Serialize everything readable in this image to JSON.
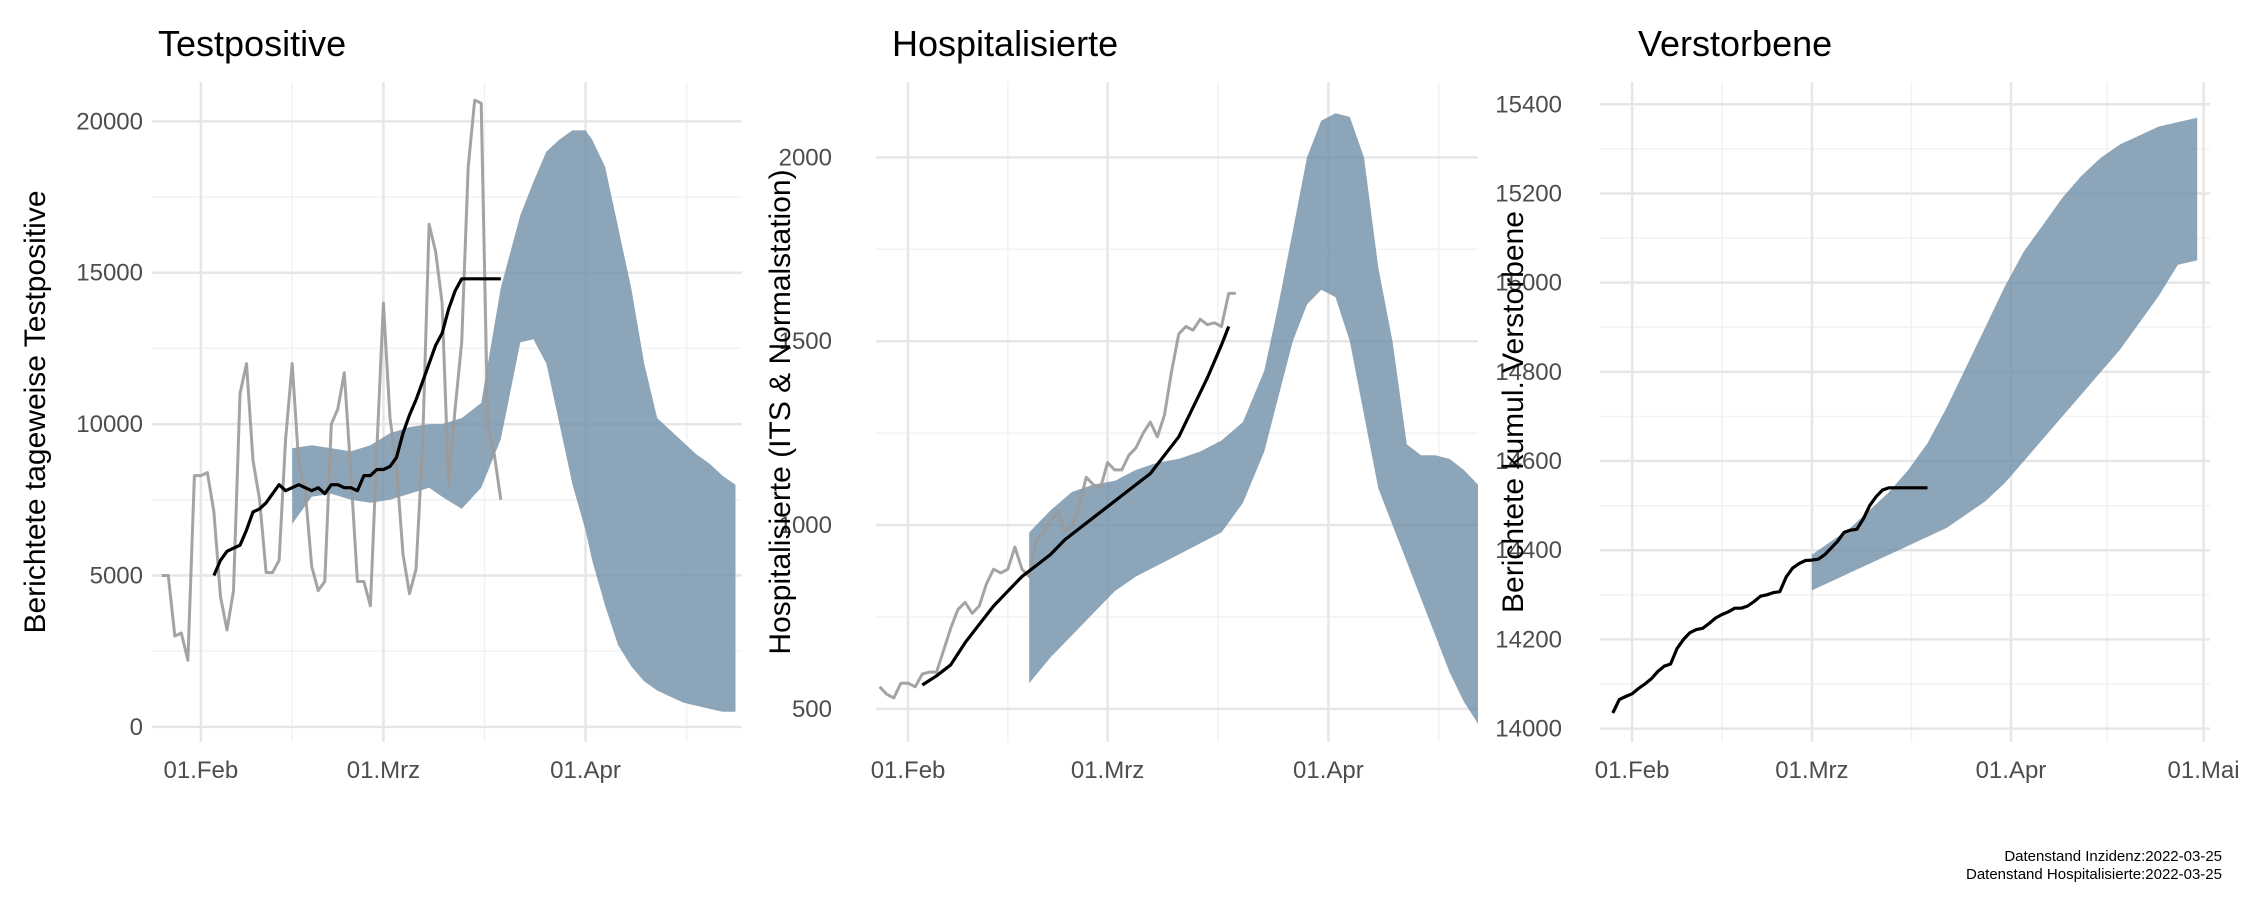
{
  "captions": {
    "line1": "Datenstand Inzidenz:2022-03-25",
    "line2": "Datenstand Hospitalisierte:2022-03-25"
  },
  "colors": {
    "band": "#718fa7",
    "raw_line": "#9a9a9a",
    "raw_line_dark": "#555555",
    "smooth_line": "#000000",
    "grid_major": "#e6e6e6",
    "grid_minor": "#f2f2f2",
    "axis_text": "#4d4d4d"
  },
  "chart_data": [
    {
      "type": "line",
      "title": "Testpositive",
      "ylabel": "Berichtete tageweise Testpositive",
      "xlabel": "",
      "x_unit": "days since 2022-02-01",
      "xlim": [
        -7.5,
        83
      ],
      "ylim": [
        -500,
        21300
      ],
      "x_ticks": [
        {
          "day": 0,
          "label": "01.Feb"
        },
        {
          "day": 28,
          "label": "01.Mrz"
        },
        {
          "day": 59,
          "label": "01.Apr"
        }
      ],
      "y_ticks": [
        0,
        5000,
        10000,
        15000,
        20000
      ],
      "grid": true,
      "series": [
        {
          "kind": "band",
          "x": [
            14,
            17,
            20,
            23,
            26,
            29,
            32,
            35,
            37,
            40,
            43,
            46,
            49,
            51,
            53,
            55,
            57,
            59,
            60,
            62,
            64,
            66,
            68,
            70,
            72,
            74,
            76,
            78,
            80,
            82
          ],
          "lower": [
            6700,
            7600,
            7700,
            7500,
            7400,
            7500,
            7700,
            7900,
            7600,
            7200,
            7900,
            9500,
            12700,
            12800,
            12000,
            10000,
            8000,
            6500,
            5500,
            4000,
            2700,
            2000,
            1500,
            1200,
            1000,
            800,
            700,
            600,
            500,
            500
          ],
          "upper": [
            9200,
            9300,
            9200,
            9100,
            9300,
            9700,
            9900,
            10000,
            10000,
            10200,
            10700,
            14500,
            16900,
            18000,
            19000,
            19400,
            19700,
            19700,
            19400,
            18500,
            16500,
            14500,
            12000,
            10200,
            9800,
            9400,
            9000,
            8700,
            8300,
            8000
          ]
        },
        {
          "kind": "line",
          "style": "raw",
          "x": [
            -6,
            -5,
            -4,
            -3,
            -2,
            -1,
            0,
            1,
            2,
            3,
            4,
            5,
            6,
            7,
            8,
            9,
            10,
            11,
            12,
            13,
            14,
            15,
            16,
            17,
            18,
            19,
            20,
            21,
            22,
            23,
            24,
            25,
            26,
            27,
            28,
            29,
            30,
            31,
            32,
            33,
            34,
            35,
            36,
            37,
            38,
            39,
            40,
            41,
            42,
            43,
            44,
            45,
            46
          ],
          "y": [
            5000,
            5000,
            3000,
            3100,
            2200,
            8300,
            8300,
            8400,
            7100,
            4300,
            3200,
            4500,
            11000,
            12000,
            8800,
            7500,
            5100,
            5100,
            5500,
            9500,
            12000,
            8700,
            7800,
            5300,
            4500,
            4800,
            10000,
            10500,
            11700,
            8400,
            4800,
            4800,
            4000,
            9200,
            14000,
            10200,
            8600,
            5700,
            4400,
            5200,
            9300,
            16600,
            15700,
            14000,
            8000,
            10500,
            12700,
            18500,
            20700,
            20600,
            10000,
            9000,
            7500
          ]
        },
        {
          "kind": "line",
          "style": "smooth",
          "x": [
            2,
            3,
            4,
            5,
            6,
            7,
            8,
            9,
            10,
            11,
            12,
            13,
            14,
            15,
            16,
            17,
            18,
            19,
            20,
            21,
            22,
            23,
            24,
            25,
            26,
            27,
            28,
            29,
            30,
            31,
            32,
            33,
            34,
            35,
            36,
            37,
            38,
            39,
            40,
            41,
            42,
            43,
            44,
            45,
            46
          ],
          "y": [
            5000,
            5500,
            5800,
            5900,
            6000,
            6500,
            7100,
            7200,
            7400,
            7700,
            8000,
            7800,
            7900,
            8000,
            7900,
            7800,
            7900,
            7700,
            8000,
            8000,
            7900,
            7900,
            7800,
            8300,
            8300,
            8500,
            8500,
            8600,
            8900,
            9700,
            10300,
            10800,
            11400,
            12000,
            12600,
            13000,
            13800,
            14400,
            14800,
            14800,
            14800,
            14800,
            14800,
            14800,
            14800
          ]
        }
      ]
    },
    {
      "type": "line",
      "title": "Hospitalisierte",
      "ylabel": "Hospitalisierte (ITS & Normalstation)",
      "xlabel": "",
      "x_unit": "days since 2022-02-01",
      "xlim": [
        -4.5,
        80
      ],
      "ylim": [
        410,
        2205
      ],
      "x_ticks": [
        {
          "day": 0,
          "label": "01.Feb"
        },
        {
          "day": 28,
          "label": "01.Mrz"
        },
        {
          "day": 59,
          "label": "01.Apr"
        }
      ],
      "y_ticks": [
        500,
        1000,
        1500,
        2000
      ],
      "grid": true,
      "series": [
        {
          "kind": "band",
          "x": [
            17,
            20,
            23,
            26,
            29,
            32,
            35,
            38,
            41,
            44,
            47,
            50,
            52,
            54,
            56,
            58,
            60,
            62,
            64,
            66,
            68,
            70,
            72,
            74,
            76,
            78,
            80
          ],
          "lower": [
            570,
            640,
            700,
            760,
            820,
            860,
            890,
            920,
            950,
            980,
            1060,
            1200,
            1350,
            1500,
            1600,
            1640,
            1620,
            1500,
            1300,
            1100,
            1000,
            900,
            800,
            700,
            600,
            520,
            460
          ],
          "upper": [
            980,
            1040,
            1090,
            1110,
            1120,
            1150,
            1170,
            1180,
            1200,
            1230,
            1280,
            1420,
            1600,
            1800,
            2000,
            2100,
            2120,
            2110,
            2000,
            1700,
            1500,
            1220,
            1190,
            1190,
            1180,
            1150,
            1110
          ]
        },
        {
          "kind": "line",
          "style": "raw",
          "x": [
            -4,
            -3,
            -2,
            -1,
            0,
            1,
            2,
            3,
            4,
            5,
            6,
            7,
            8,
            9,
            10,
            11,
            12,
            13,
            14,
            15,
            16,
            17,
            18,
            19,
            20,
            21,
            22,
            23,
            24,
            25,
            26,
            27,
            28,
            29,
            30,
            31,
            32,
            33,
            34,
            35,
            36,
            37,
            38,
            39,
            40,
            41,
            42,
            43,
            44,
            45,
            46
          ],
          "y": [
            560,
            540,
            530,
            570,
            570,
            560,
            595,
            600,
            600,
            660,
            720,
            770,
            790,
            760,
            780,
            840,
            880,
            870,
            880,
            940,
            880,
            860,
            960,
            980,
            1010,
            1040,
            980,
            1000,
            1050,
            1130,
            1110,
            1100,
            1170,
            1150,
            1150,
            1190,
            1210,
            1250,
            1280,
            1240,
            1300,
            1420,
            1520,
            1540,
            1530,
            1560,
            1545,
            1550,
            1540,
            1630,
            1630
          ]
        },
        {
          "kind": "line",
          "style": "smooth",
          "x": [
            2,
            4,
            6,
            8,
            10,
            12,
            14,
            16,
            18,
            20,
            22,
            24,
            26,
            28,
            30,
            32,
            34,
            36,
            38,
            40,
            42,
            44,
            45
          ],
          "y": [
            565,
            590,
            620,
            680,
            730,
            780,
            820,
            860,
            890,
            920,
            960,
            990,
            1020,
            1050,
            1080,
            1110,
            1140,
            1190,
            1240,
            1320,
            1400,
            1490,
            1540
          ]
        }
      ]
    },
    {
      "type": "line",
      "title": "Verstorbene",
      "ylabel": "Berichtete kumul. Verstorbene",
      "xlabel": "",
      "x_unit": "days since 2022-02-01",
      "xlim": [
        -5,
        90
      ],
      "ylim": [
        13970,
        15450
      ],
      "x_ticks": [
        {
          "day": 0,
          "label": "01.Feb"
        },
        {
          "day": 28,
          "label": "01.Mrz"
        },
        {
          "day": 59,
          "label": "01.Apr"
        },
        {
          "day": 89,
          "label": "01.Mai"
        }
      ],
      "y_ticks": [
        14000,
        14200,
        14400,
        14600,
        14800,
        15000,
        15200,
        15400
      ],
      "grid": true,
      "series": [
        {
          "kind": "band",
          "x": [
            28,
            31,
            34,
            37,
            40,
            43,
            46,
            49,
            52,
            55,
            58,
            61,
            64,
            67,
            70,
            73,
            76,
            79,
            82,
            85,
            88
          ],
          "lower": [
            14310,
            14330,
            14350,
            14370,
            14390,
            14410,
            14430,
            14450,
            14480,
            14510,
            14550,
            14600,
            14650,
            14700,
            14750,
            14800,
            14850,
            14910,
            14970,
            15040,
            15050
          ],
          "upper": [
            14390,
            14420,
            14450,
            14490,
            14530,
            14580,
            14640,
            14720,
            14810,
            14900,
            14990,
            15070,
            15130,
            15190,
            15240,
            15280,
            15310,
            15330,
            15350,
            15360,
            15370
          ]
        },
        {
          "kind": "line",
          "style": "smooth",
          "x": [
            -3,
            -2,
            -1,
            0,
            1,
            2,
            3,
            4,
            5,
            6,
            7,
            8,
            9,
            10,
            11,
            12,
            13,
            14,
            15,
            16,
            17,
            18,
            19,
            20,
            21,
            22,
            23,
            24,
            25,
            26,
            27,
            28,
            29,
            30,
            31,
            32,
            33,
            34,
            35,
            36,
            37,
            38,
            39,
            40,
            41,
            42,
            43,
            44,
            45,
            46
          ],
          "y": [
            14035,
            14065,
            14072,
            14078,
            14090,
            14100,
            14112,
            14128,
            14140,
            14145,
            14180,
            14200,
            14215,
            14222,
            14225,
            14236,
            14248,
            14256,
            14262,
            14270,
            14270,
            14275,
            14285,
            14297,
            14300,
            14305,
            14307,
            14340,
            14360,
            14370,
            14377,
            14378,
            14380,
            14390,
            14405,
            14420,
            14440,
            14445,
            14447,
            14470,
            14500,
            14520,
            14535,
            14540,
            14540,
            14540,
            14540,
            14540,
            14540,
            14540
          ]
        }
      ]
    }
  ]
}
